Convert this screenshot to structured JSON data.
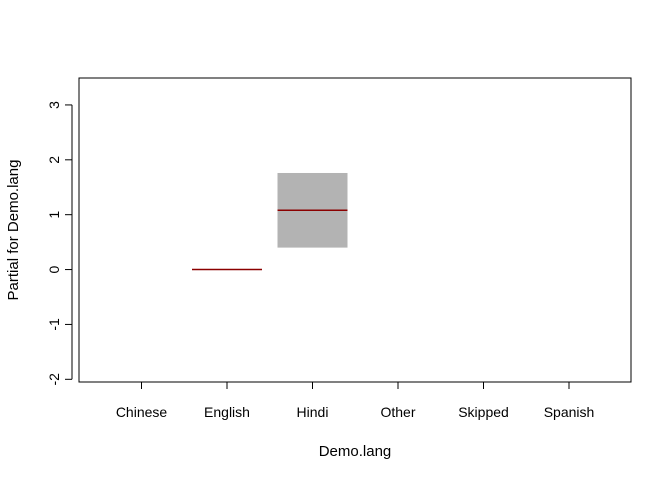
{
  "chart_data": {
    "type": "termplot",
    "xlabel": "Demo.lang",
    "ylabel": "Partial for Demo.lang",
    "ylim": [
      -2,
      3.5
    ],
    "yticks": [
      -2,
      -1,
      0,
      1,
      2,
      3
    ],
    "categories": [
      "Chinese",
      "English",
      "Hindi",
      "Other",
      "Skipped",
      "Spanish"
    ],
    "terms": [
      {
        "category": "English",
        "fit": 0.0,
        "lower": 0.0,
        "upper": 0.0
      },
      {
        "category": "Hindi",
        "fit": 1.08,
        "lower": 0.4,
        "upper": 1.76
      }
    ],
    "colors": {
      "fit_line": "#8b0000",
      "se_band": "#b3b3b3",
      "axis": "#000000"
    },
    "grid": false,
    "legend": "none"
  }
}
